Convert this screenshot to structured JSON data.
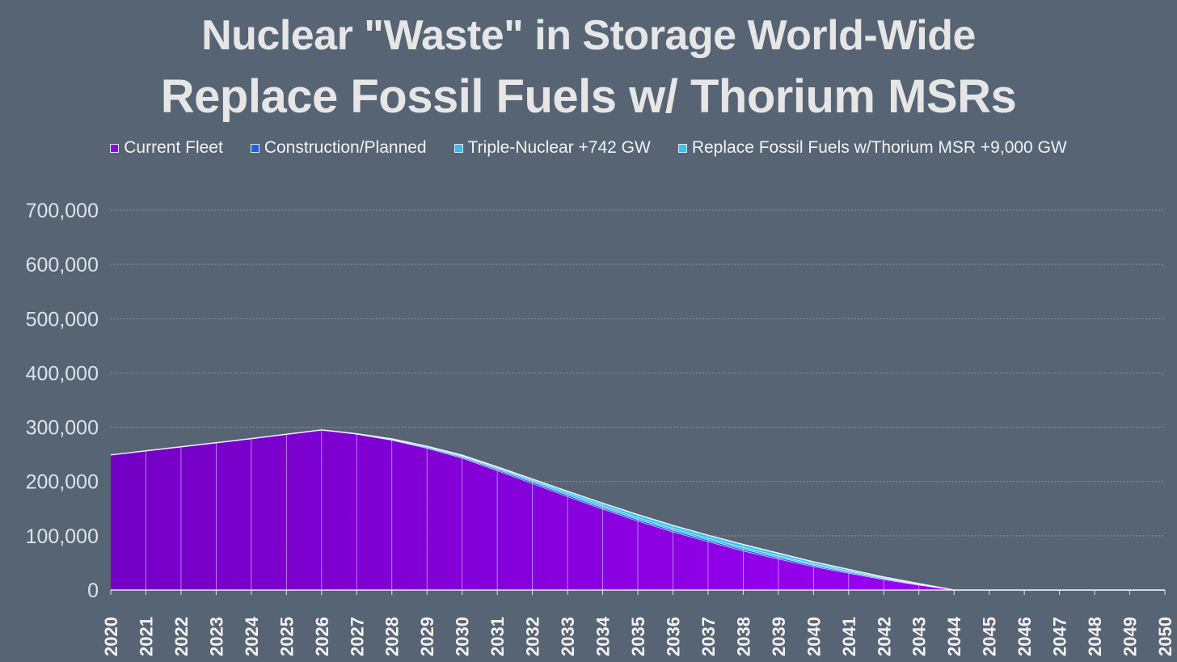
{
  "chart_data": {
    "type": "area",
    "stacked": true,
    "title": "Nuclear \"Waste\" in Storage World-Wide",
    "subtitle": "Replace Fossil Fuels w/ Thorium MSRs",
    "legend_position": "top",
    "grid": true,
    "ylim": [
      0,
      700000
    ],
    "yticks": [
      "0",
      "100,000",
      "200,000",
      "300,000",
      "400,000",
      "500,000",
      "600,000",
      "700,000"
    ],
    "ytick_values": [
      0,
      100000,
      200000,
      300000,
      400000,
      500000,
      600000,
      700000
    ],
    "x": [
      "2020",
      "2021",
      "2022",
      "2023",
      "2024",
      "2025",
      "2026",
      "2027",
      "2028",
      "2029",
      "2030",
      "2031",
      "2032",
      "2033",
      "2034",
      "2035",
      "2036",
      "2037",
      "2038",
      "2039",
      "2040",
      "2041",
      "2042",
      "2043",
      "2044",
      "2045",
      "2046",
      "2047",
      "2048",
      "2049",
      "2050"
    ],
    "series": [
      {
        "name": "Current Fleet",
        "color": "#8a00e6",
        "values": [
          249000,
          256500,
          264000,
          271500,
          279000,
          287000,
          295000,
          287000,
          276000,
          261000,
          243000,
          220000,
          196000,
          172000,
          149000,
          127000,
          107000,
          89000,
          72000,
          57000,
          43000,
          31000,
          19000,
          9000,
          0,
          0,
          0,
          0,
          0,
          0,
          0
        ]
      },
      {
        "name": "Construction/Planned",
        "color": "#1f5fd6",
        "values": [
          0,
          0,
          0,
          0,
          0,
          0,
          0,
          500,
          1000,
          1500,
          2000,
          2500,
          3000,
          3000,
          3000,
          3000,
          3000,
          3000,
          3000,
          3000,
          2500,
          2000,
          1500,
          1000,
          0,
          0,
          0,
          0,
          0,
          0,
          0
        ]
      },
      {
        "name": "Triple-Nuclear +742 GW",
        "color": "#3fb6f0",
        "values": [
          0,
          0,
          0,
          0,
          0,
          0,
          0,
          500,
          1000,
          1500,
          2000,
          2500,
          3000,
          3500,
          3500,
          3500,
          3500,
          3500,
          3500,
          3000,
          2500,
          2000,
          1500,
          1000,
          0,
          0,
          0,
          0,
          0,
          0,
          0
        ]
      },
      {
        "name": "Replace Fossil Fuels w/Thorium MSR +9,000 GW",
        "color": "#2ec8f2",
        "values": [
          0,
          0,
          0,
          0,
          0,
          0,
          0,
          0,
          500,
          1000,
          1500,
          2000,
          2500,
          3500,
          4500,
          5500,
          5500,
          5500,
          5500,
          5000,
          4000,
          3000,
          2000,
          1000,
          0,
          0,
          0,
          0,
          0,
          0,
          0
        ]
      }
    ]
  }
}
